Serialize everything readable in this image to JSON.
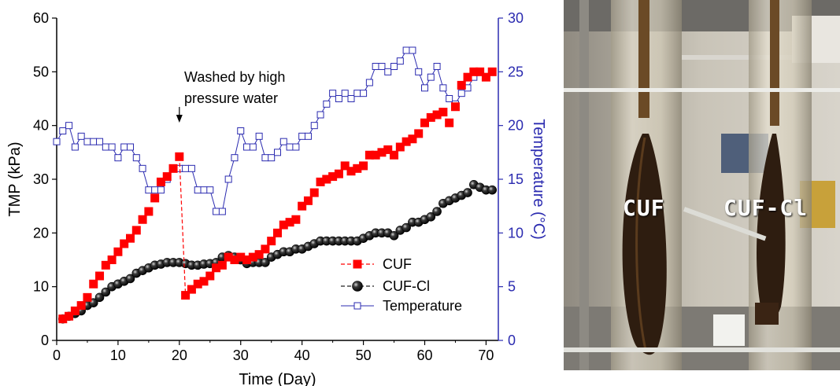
{
  "chart_data": {
    "type": "scatter",
    "xlabel": "Time (Day)",
    "ylabel": "TMP (kPa)",
    "y2label": "Temperature (°C)",
    "xlim": [
      0,
      72
    ],
    "ylim": [
      0,
      60
    ],
    "y2lim": [
      0,
      30
    ],
    "xticks": [
      0,
      10,
      20,
      30,
      40,
      50,
      60,
      70
    ],
    "yticks": [
      0,
      10,
      20,
      30,
      40,
      50,
      60
    ],
    "y2ticks": [
      0,
      5,
      10,
      15,
      20,
      25,
      30
    ],
    "grid": false,
    "legend_position": "lower-center",
    "annotation": {
      "line1": "Washed by high",
      "line2": "pressure water",
      "x": 20
    },
    "series": [
      {
        "name": "CUF",
        "axis": "left",
        "marker": "filled-square",
        "color": "#ff0000",
        "dashed_segment": [
          [
            20,
            34.2
          ],
          [
            21,
            8.4
          ]
        ],
        "x": [
          1,
          2,
          3,
          4,
          5,
          6,
          7,
          8,
          9,
          10,
          11,
          12,
          13,
          14,
          15,
          16,
          17,
          18,
          19,
          20,
          21,
          22,
          23,
          24,
          25,
          26,
          27,
          28,
          29,
          30,
          31,
          32,
          33,
          34,
          35,
          36,
          37,
          38,
          39,
          40,
          41,
          42,
          43,
          44,
          45,
          46,
          47,
          48,
          49,
          50,
          51,
          52,
          53,
          54,
          55,
          56,
          57,
          58,
          59,
          60,
          61,
          62,
          63,
          64,
          65,
          66,
          67,
          68,
          69,
          70,
          71
        ],
        "values": [
          4.0,
          4.5,
          5.5,
          6.5,
          8.0,
          10.5,
          12.0,
          14.0,
          15.0,
          16.5,
          18.0,
          19.0,
          20.5,
          22.5,
          24.0,
          26.5,
          29.5,
          30.5,
          32.0,
          34.2,
          8.4,
          9.5,
          10.5,
          11.0,
          12.0,
          13.5,
          14.0,
          15.5,
          15.0,
          15.5,
          15.0,
          15.5,
          16.0,
          17.0,
          18.5,
          20.0,
          21.5,
          22.0,
          22.5,
          25.0,
          26.0,
          27.5,
          29.5,
          30.0,
          30.5,
          31.0,
          32.5,
          31.5,
          32.0,
          32.5,
          34.5,
          34.5,
          35.0,
          35.5,
          34.5,
          36.0,
          37.0,
          37.5,
          38.5,
          40.5,
          41.5,
          42.0,
          42.5,
          40.5,
          43.5,
          47.5,
          49.0,
          50.0,
          50.0,
          49.0,
          50.0
        ]
      },
      {
        "name": "CUF-Cl",
        "axis": "left",
        "marker": "ball",
        "color": "#111111",
        "x": [
          1,
          2,
          3,
          4,
          5,
          6,
          7,
          8,
          9,
          10,
          11,
          12,
          13,
          14,
          15,
          16,
          17,
          18,
          19,
          20,
          21,
          22,
          23,
          24,
          25,
          26,
          27,
          28,
          29,
          30,
          31,
          32,
          33,
          34,
          35,
          36,
          37,
          38,
          39,
          40,
          41,
          42,
          43,
          44,
          45,
          46,
          47,
          48,
          49,
          50,
          51,
          52,
          53,
          54,
          55,
          56,
          57,
          58,
          59,
          60,
          61,
          62,
          63,
          64,
          65,
          66,
          67,
          68,
          69,
          70,
          71
        ],
        "values": [
          4.0,
          4.5,
          5.0,
          5.5,
          6.5,
          7.0,
          8.0,
          9.0,
          10.0,
          10.5,
          11.0,
          11.5,
          12.5,
          13.0,
          13.5,
          14.0,
          14.2,
          14.5,
          14.5,
          14.5,
          14.3,
          14.0,
          14.0,
          14.2,
          14.3,
          14.5,
          15.5,
          15.8,
          15.5,
          15.0,
          14.3,
          14.5,
          14.5,
          14.5,
          15.5,
          16.0,
          16.5,
          16.5,
          17.0,
          17.0,
          17.5,
          18.0,
          18.5,
          18.5,
          18.5,
          18.5,
          18.5,
          18.5,
          18.5,
          19.0,
          19.5,
          20.0,
          20.0,
          20.0,
          19.5,
          20.5,
          21.0,
          22.0,
          22.0,
          22.5,
          23.0,
          24.0,
          25.5,
          26.0,
          26.5,
          27.0,
          27.5,
          29.0,
          28.5,
          28.0,
          28.0
        ]
      },
      {
        "name": "Temperature",
        "axis": "right",
        "marker": "open-square",
        "color": "#2b2bb0",
        "x": [
          0,
          1,
          2,
          3,
          4,
          5,
          6,
          7,
          8,
          9,
          10,
          11,
          12,
          13,
          14,
          15,
          16,
          17,
          18,
          19,
          20,
          21,
          22,
          23,
          24,
          25,
          26,
          27,
          28,
          29,
          30,
          31,
          32,
          33,
          34,
          35,
          36,
          37,
          38,
          39,
          40,
          41,
          42,
          43,
          44,
          45,
          46,
          47,
          48,
          49,
          50,
          51,
          52,
          53,
          54,
          55,
          56,
          57,
          58,
          59,
          60,
          61,
          62,
          63,
          64,
          65,
          66,
          67,
          68,
          69,
          70,
          71
        ],
        "values": [
          18.5,
          19.5,
          20.0,
          18.0,
          19.0,
          18.5,
          18.5,
          18.5,
          18.0,
          18.0,
          17.0,
          18.0,
          18.0,
          17.0,
          16.0,
          14.0,
          14.0,
          14.0,
          15.0,
          16.0,
          16.0,
          16.0,
          16.0,
          14.0,
          14.0,
          14.0,
          12.0,
          12.0,
          15.0,
          17.0,
          19.5,
          18.0,
          18.0,
          19.0,
          17.0,
          17.0,
          17.5,
          18.5,
          18.0,
          18.0,
          19.0,
          19.0,
          20.0,
          21.0,
          22.0,
          23.0,
          22.5,
          23.0,
          22.5,
          23.0,
          23.0,
          24.0,
          25.5,
          25.5,
          25.0,
          25.5,
          26.0,
          27.0,
          27.0,
          25.0,
          23.5,
          24.5,
          25.5,
          23.5,
          22.5,
          22.0,
          23.0,
          23.5,
          24.5,
          25.0,
          24.5,
          25.0
        ]
      }
    ]
  },
  "photo": {
    "label_left": "CUF",
    "label_right": "CUF-Cl"
  }
}
